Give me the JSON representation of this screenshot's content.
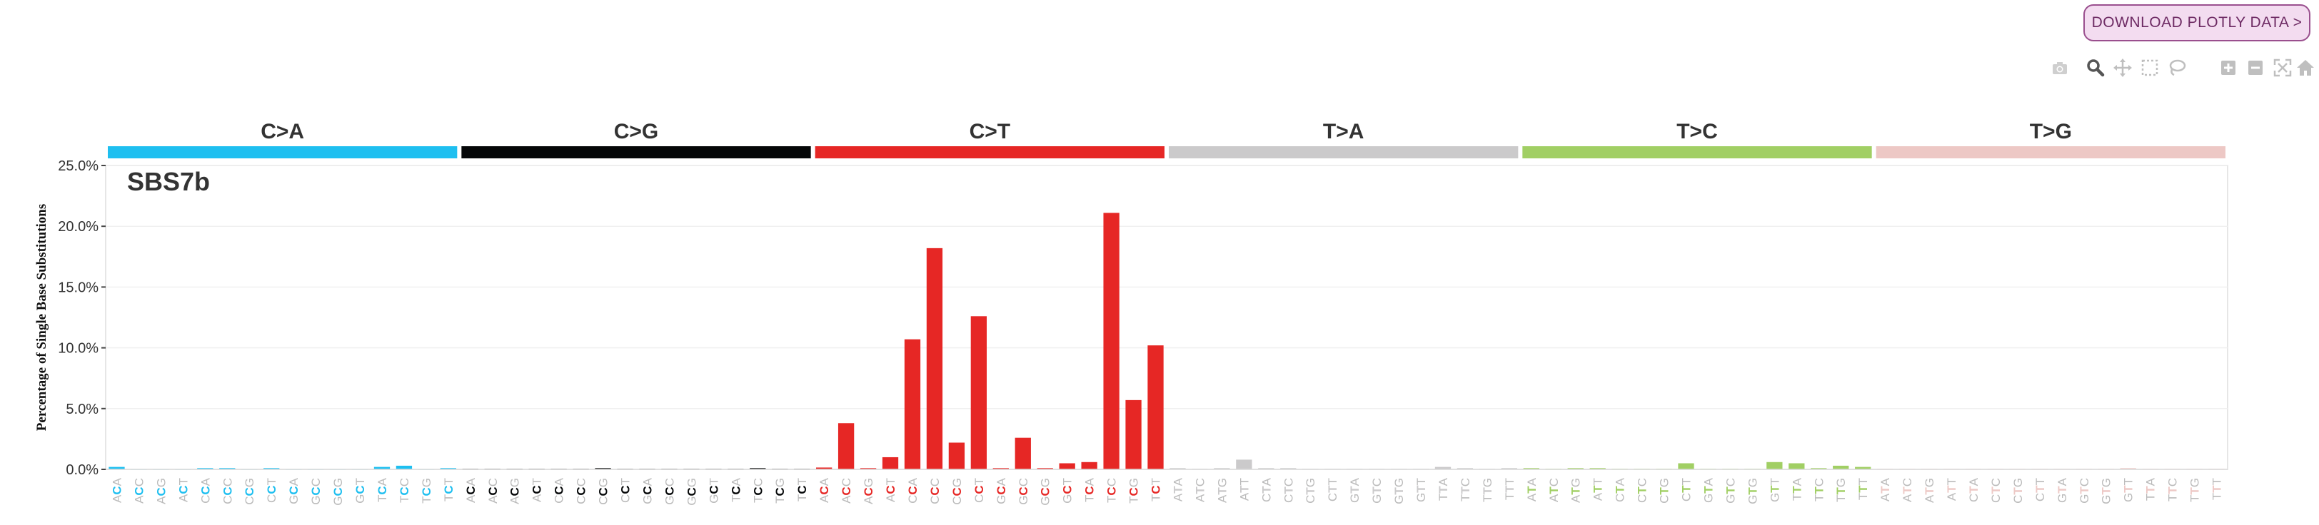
{
  "download_button": {
    "label": "DOWNLOAD PLOTLY DATA >"
  },
  "modebar": {
    "icons": [
      "camera-icon",
      "zoom-icon",
      "pan-icon",
      "box-select-icon",
      "lasso-select-icon",
      "zoom-in-icon",
      "zoom-out-icon",
      "autoscale-icon",
      "reset-axes-icon"
    ]
  },
  "chart_data": {
    "type": "bar",
    "title": "SBS7b",
    "ylabel": "Percentage of Single Base Substitutions",
    "ylim": [
      0,
      25
    ],
    "yticks": [
      "0.0%",
      "5.0%",
      "10.0%",
      "15.0%",
      "20.0%",
      "25.0%"
    ],
    "grid": true,
    "groups": [
      {
        "name": "C>A",
        "color": "#1ebff0",
        "mutated": "C"
      },
      {
        "name": "C>G",
        "color": "#050708",
        "mutated": "C"
      },
      {
        "name": "C>T",
        "color": "#e62725",
        "mutated": "C"
      },
      {
        "name": "T>A",
        "color": "#cbcacb",
        "mutated": "T"
      },
      {
        "name": "T>C",
        "color": "#a1cf64",
        "mutated": "T"
      },
      {
        "name": "T>G",
        "color": "#edc8c5",
        "mutated": "T"
      }
    ],
    "categories": [
      "ACA",
      "ACC",
      "ACG",
      "ACT",
      "CCA",
      "CCC",
      "CCG",
      "CCT",
      "GCA",
      "GCC",
      "GCG",
      "GCT",
      "TCA",
      "TCC",
      "TCG",
      "TCT"
    ],
    "categories_T": [
      "ATA",
      "ATC",
      "ATG",
      "ATT",
      "CTA",
      "CTC",
      "CTG",
      "CTT",
      "GTA",
      "GTC",
      "GTG",
      "GTT",
      "TTA",
      "TTC",
      "TTG",
      "TTT"
    ],
    "series": [
      {
        "group": "C>A",
        "values": [
          0.2,
          0.0,
          0.0,
          0.0,
          0.1,
          0.1,
          0.0,
          0.1,
          0.0,
          0.0,
          0.0,
          0.0,
          0.2,
          0.3,
          0.0,
          0.1
        ]
      },
      {
        "group": "C>G",
        "values": [
          0.05,
          0.05,
          0.05,
          0.05,
          0.05,
          0.05,
          0.1,
          0.05,
          0.05,
          0.05,
          0.05,
          0.05,
          0.05,
          0.1,
          0.05,
          0.05
        ]
      },
      {
        "group": "C>T",
        "values": [
          0.15,
          3.8,
          0.1,
          1.0,
          10.7,
          18.2,
          2.2,
          12.6,
          0.1,
          2.6,
          0.1,
          0.5,
          0.6,
          21.1,
          5.7,
          10.2
        ]
      },
      {
        "group": "T>A",
        "values": [
          0.1,
          0.05,
          0.1,
          0.8,
          0.1,
          0.1,
          0.05,
          0.05,
          0.05,
          0.05,
          0.05,
          0.05,
          0.2,
          0.1,
          0.05,
          0.1
        ]
      },
      {
        "group": "T>C",
        "values": [
          0.1,
          0.05,
          0.1,
          0.1,
          0.05,
          0.05,
          0.05,
          0.5,
          0.05,
          0.05,
          0.05,
          0.6,
          0.5,
          0.1,
          0.3,
          0.2
        ]
      },
      {
        "group": "T>G",
        "values": [
          0.05,
          0.05,
          0.05,
          0.05,
          0.05,
          0.05,
          0.05,
          0.05,
          0.05,
          0.05,
          0.05,
          0.1,
          0.05,
          0.05,
          0.05,
          0.05
        ]
      }
    ]
  }
}
